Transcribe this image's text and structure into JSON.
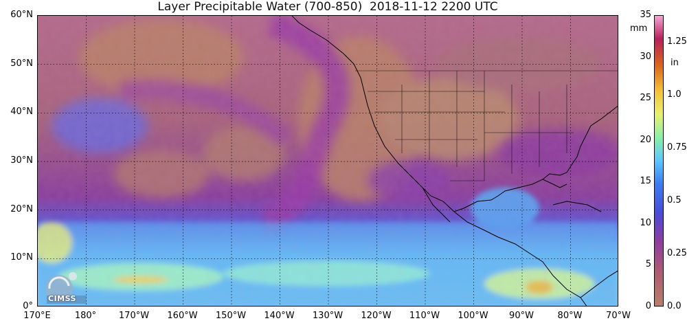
{
  "title": "Layer Precipitable Water (700-850)  2018-11-12 2200 UTC",
  "latitude_labels": [
    "60°N",
    "50°N",
    "40°N",
    "30°N",
    "20°N",
    "10°N",
    "0°"
  ],
  "longitude_labels": [
    "170°E",
    "180°",
    "170°W",
    "160°W",
    "150°W",
    "140°W",
    "130°W",
    "120°W",
    "110°W",
    "100°W",
    "90°W",
    "80°W",
    "70°W"
  ],
  "colorbar": {
    "mm_unit": "mm",
    "in_unit": "in",
    "mm_ticks": [
      "35",
      "30",
      "25",
      "20",
      "15",
      "10",
      "5",
      "0"
    ],
    "in_ticks": [
      "1.25",
      "1.0",
      "0.75",
      "0.5",
      "0.25",
      "0.0"
    ],
    "range_mm": [
      0,
      35
    ],
    "stops": [
      {
        "v": 0.0,
        "color": "#b97f6a"
      },
      {
        "v": 0.12,
        "color": "#ad5a73"
      },
      {
        "v": 0.22,
        "color": "#8e3ea0"
      },
      {
        "v": 0.32,
        "color": "#4a4bd8"
      },
      {
        "v": 0.42,
        "color": "#3a7df0"
      },
      {
        "v": 0.5,
        "color": "#5cc6ff"
      },
      {
        "v": 0.58,
        "color": "#8af0a8"
      },
      {
        "v": 0.66,
        "color": "#e8f070"
      },
      {
        "v": 0.74,
        "color": "#f5c238"
      },
      {
        "v": 0.83,
        "color": "#d9661c"
      },
      {
        "v": 0.92,
        "color": "#b8205a"
      },
      {
        "v": 1.0,
        "color": "#f3a6d4"
      }
    ]
  },
  "logo": {
    "text": "CIMSS"
  },
  "colors": {
    "dry": "#b2746f",
    "moist_purple": "#9a3fa0",
    "tropical_blue": "#4fa8f0"
  }
}
